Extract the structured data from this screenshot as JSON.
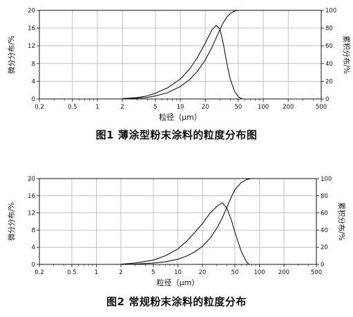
{
  "figures": [
    {
      "caption": "图1  薄涂型粉末涂料的粒度分布图",
      "chart_data": {
        "type": "line",
        "xlabel": "粒径（μm）",
        "ylabel_left": "微分分布/%",
        "ylabel_right": "累积分布/%",
        "x_scale": "log",
        "xlim": [
          0.2,
          500
        ],
        "x_ticks": [
          "0.2",
          "0.5",
          "1",
          "2",
          "5",
          "10",
          "20",
          "50",
          "100",
          "200",
          "500"
        ],
        "ylim_left": [
          0,
          20
        ],
        "y_ticks_left": [
          "0",
          "4",
          "8",
          "12",
          "16",
          "20"
        ],
        "ylim_right": [
          0,
          100
        ],
        "y_ticks_right": [
          "0",
          "20",
          "40",
          "60",
          "80",
          "100"
        ],
        "grid": true,
        "series": [
          {
            "axis": "left",
            "x": [
              2,
              3,
              4,
              5,
              7,
              10,
              13,
              16,
              20,
              24,
              27,
              30,
              33,
              36,
              40,
              45,
              50,
              56
            ],
            "y": [
              0.1,
              0.3,
              0.7,
              1.3,
              2.5,
              4.5,
              6.8,
              9.3,
              12.6,
              15.6,
              16.6,
              15.8,
              12.5,
              8.5,
              4.5,
              1.8,
              0.5,
              0
            ]
          },
          {
            "axis": "right",
            "x": [
              2,
              3,
              4,
              5,
              7,
              10,
              13,
              16,
              20,
              24,
              28,
              32,
              36,
              40,
              45,
              50,
              56
            ],
            "y": [
              0.2,
              0.8,
              1.8,
              3.4,
              7,
              14,
              22,
              31,
              44,
              58,
              72,
              84,
              92,
              96.5,
              99.2,
              100,
              100
            ]
          }
        ]
      }
    },
    {
      "caption": "图2  常规粉末涂料的粒度分布",
      "chart_data": {
        "type": "line",
        "xlabel": "粒径（μm）",
        "ylabel_left": "微分分布/%",
        "ylabel_right": "累积分布/%",
        "x_scale": "log",
        "xlim": [
          0.2,
          500
        ],
        "x_ticks": [
          "0.2",
          "0.5",
          "1",
          "2",
          "5",
          "10",
          "20",
          "50",
          "100",
          "200",
          "500"
        ],
        "ylim_left": [
          0,
          20
        ],
        "y_ticks_left": [
          "0",
          "4",
          "8",
          "12",
          "16",
          "20"
        ],
        "ylim_right": [
          0,
          100
        ],
        "y_ticks_right": [
          "0",
          "20",
          "40",
          "60",
          "80",
          "100"
        ],
        "grid": true,
        "series": [
          {
            "axis": "left",
            "x": [
              2,
              3,
              5,
              7,
              10,
              13,
              16,
              20,
              25,
              30,
              35,
              40,
              45,
              50,
              60,
              70,
              75
            ],
            "y": [
              0.05,
              0.3,
              1,
              2,
              3.6,
              5.5,
              7.4,
              9.5,
              12,
              13.5,
              14.4,
              13,
              10.5,
              7.5,
              3,
              0.5,
              0
            ]
          },
          {
            "axis": "right",
            "x": [
              2,
              3,
              5,
              7,
              10,
              13,
              16,
              20,
              25,
              30,
              35,
              40,
              45,
              50,
              60,
              70,
              80
            ],
            "y": [
              0.1,
              0.4,
              1.5,
              3,
              6,
              10,
              14.5,
              21,
              31,
              42,
              54,
              67,
              78,
              87,
              95.5,
              99,
              100
            ]
          }
        ]
      }
    }
  ]
}
